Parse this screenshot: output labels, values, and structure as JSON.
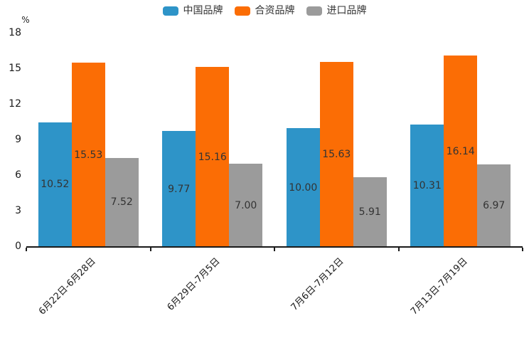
{
  "chart_data": {
    "type": "bar",
    "title": "",
    "ylabel": "%",
    "xlabel": "",
    "grid": false,
    "legend_position": "top-center",
    "value_labels": "inside-center",
    "value_label_decimals": 2,
    "ylim": [
      0,
      18
    ],
    "yticks": [
      0,
      3,
      6,
      9,
      12,
      15,
      18
    ],
    "categories": [
      "6月22日-6月28日",
      "6月29日-7月5日",
      "7月6日-7月12日",
      "7月13日-7月19日"
    ],
    "series": [
      {
        "name": "中国品牌",
        "color": "#2E94C8",
        "values": [
          10.52,
          9.77,
          10.0,
          10.31
        ]
      },
      {
        "name": "合资品牌",
        "color": "#FB6D05",
        "values": [
          15.53,
          15.16,
          15.63,
          16.14
        ]
      },
      {
        "name": "进口品牌",
        "color": "#9B9B9B",
        "values": [
          7.52,
          7.0,
          5.91,
          6.97
        ]
      }
    ],
    "colors": {
      "axis": "#1a1a1a",
      "tick_label": "#1a1a1a",
      "bar_value_label": "#333333",
      "legend_text": "#333333",
      "background": "#ffffff"
    }
  }
}
